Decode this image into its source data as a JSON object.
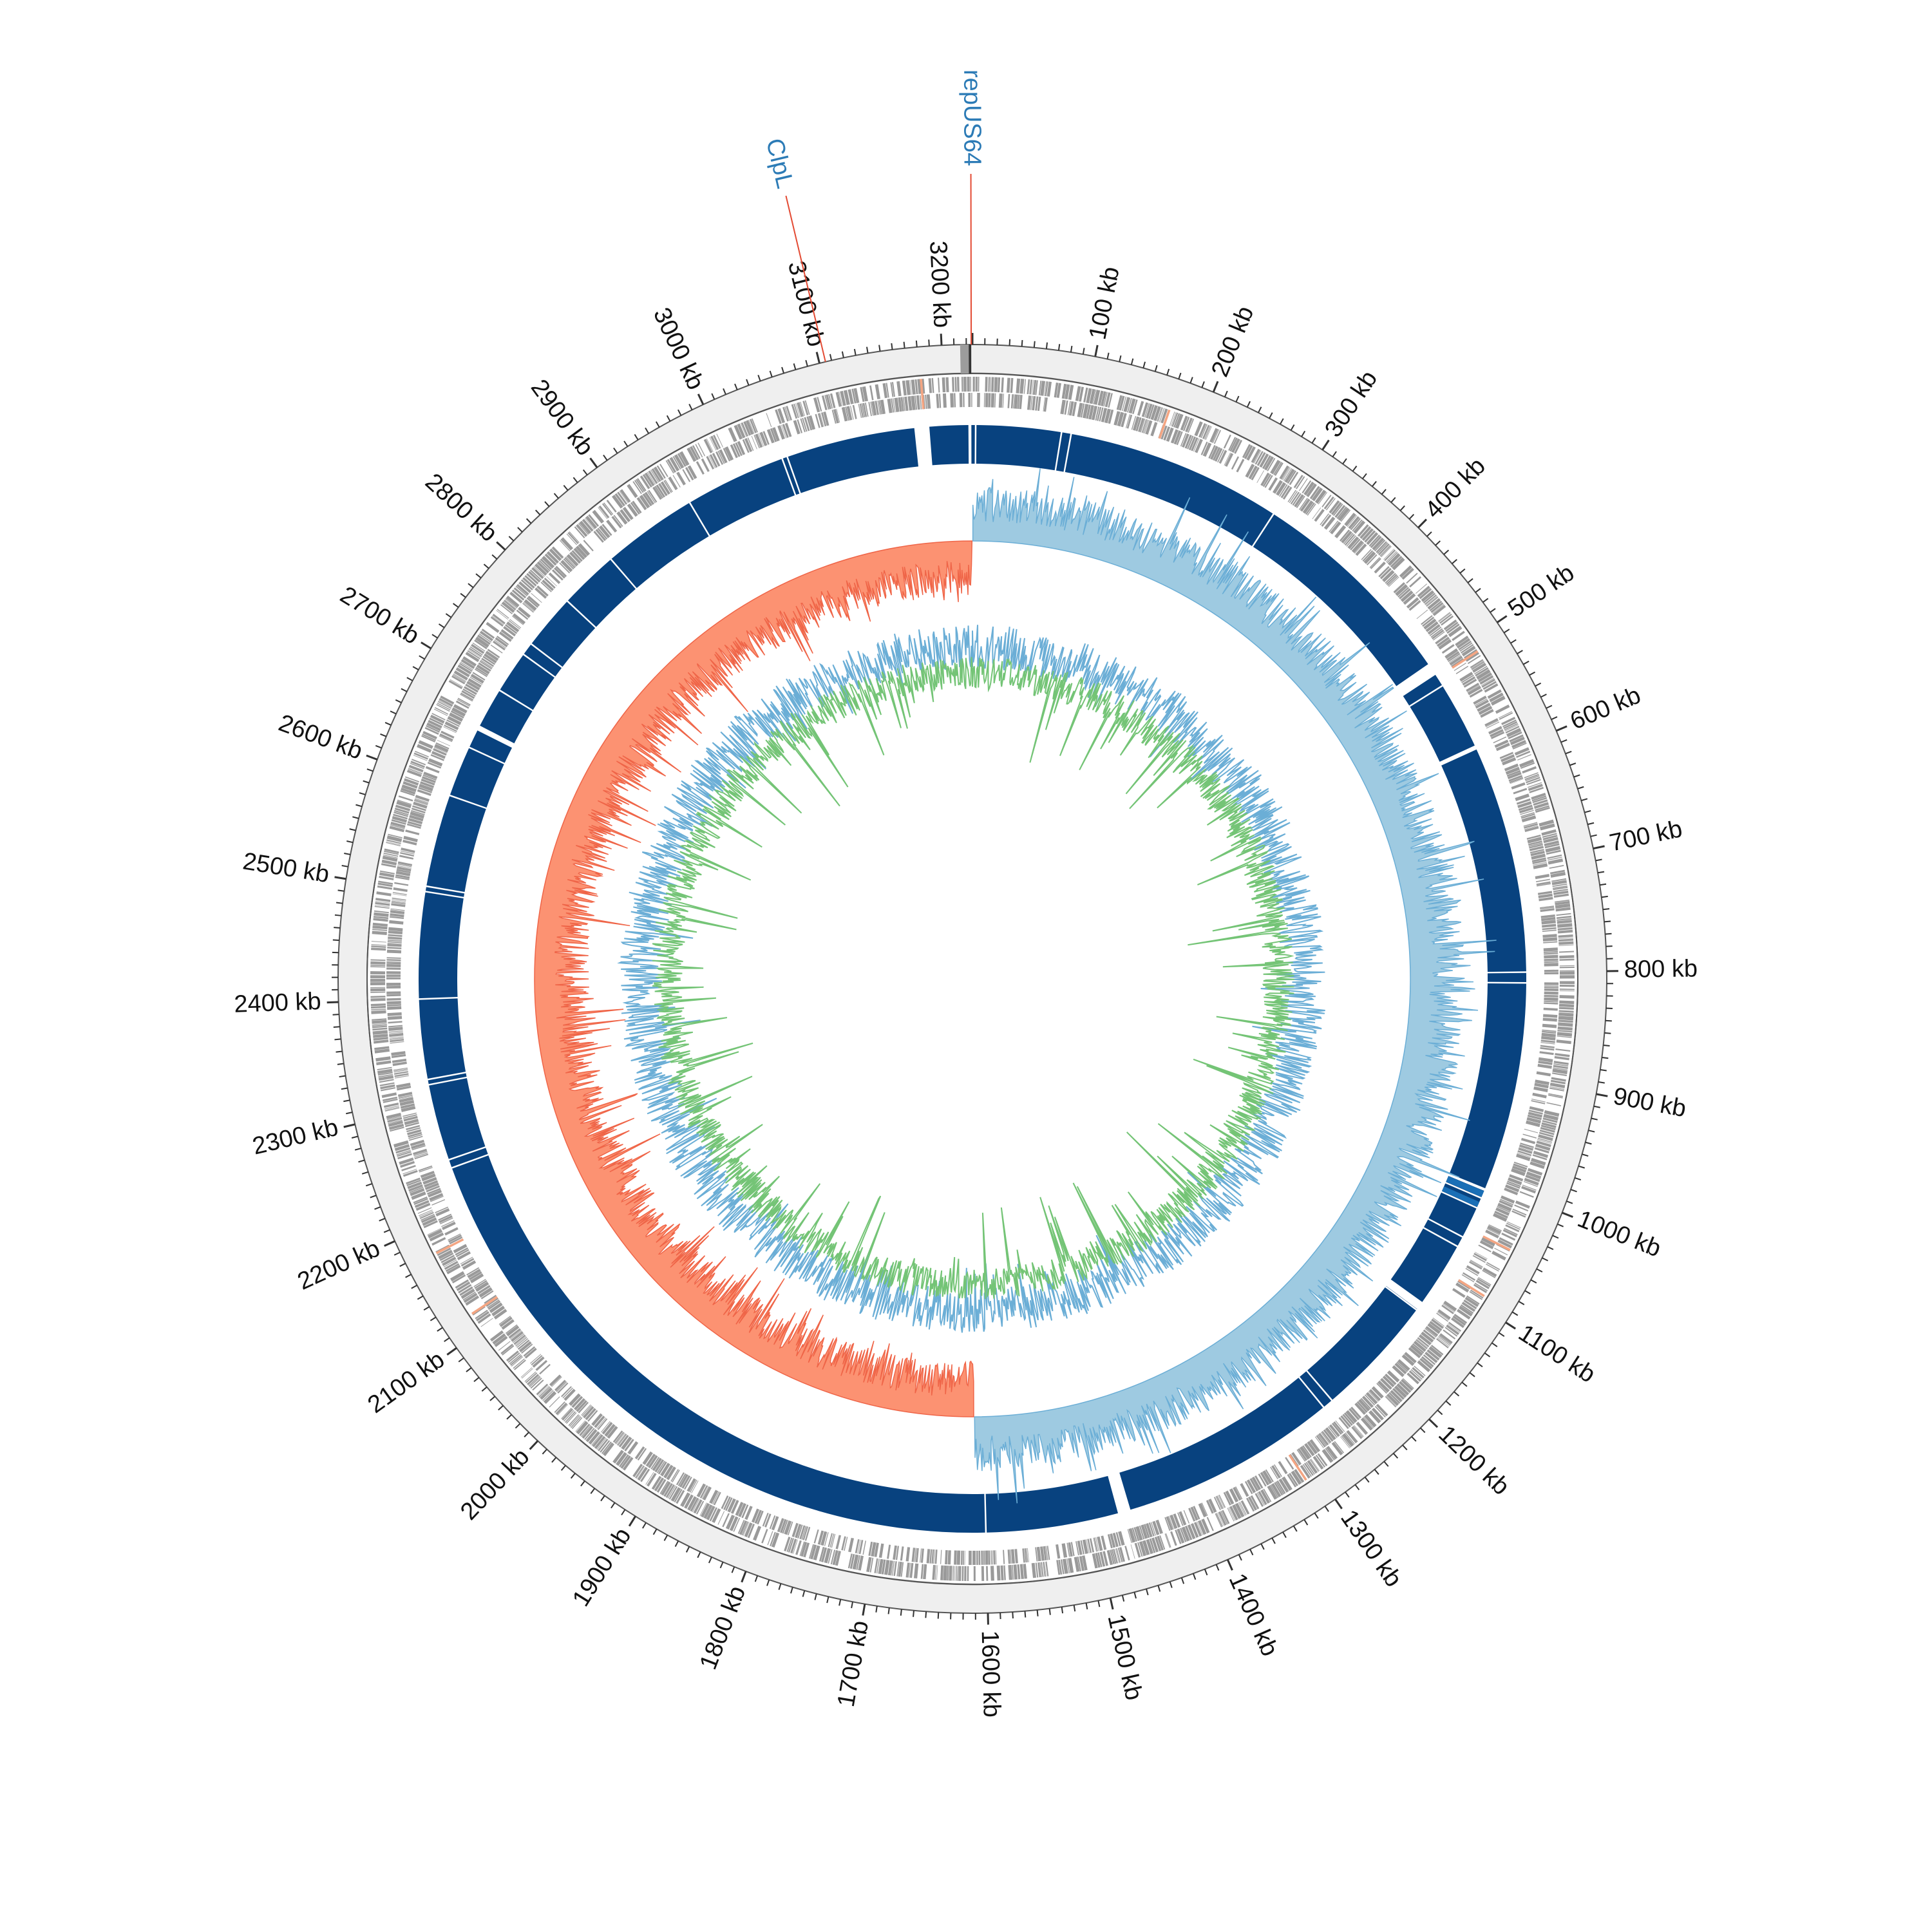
{
  "figure": {
    "type": "circular-genome-map",
    "total_length_kb": 3225,
    "tick_unit": "kb"
  },
  "colors": {
    "background": "#ffffff",
    "outer_ring": "#efefef",
    "ring_outline": "#555555",
    "cds": "#9a9a9a",
    "cds_highlight": "#f4a582",
    "contig": "#08427f",
    "contig_alt": "#1a6fb6",
    "gc_skew_positive": "#9ecae1",
    "gc_skew_positive_line": "#6baed6",
    "gc_skew_negative": "#fc9272",
    "gc_skew_negative_line": "#ef6548",
    "gc_content_outer": "#6baed6",
    "gc_content_inner": "#74c476",
    "marker_line": "#e34a33",
    "gene_label": "#2c7bb6"
  },
  "ticks": [
    {
      "position_kb": 100,
      "label": "100 kb"
    },
    {
      "position_kb": 200,
      "label": "200 kb"
    },
    {
      "position_kb": 300,
      "label": "300 kb"
    },
    {
      "position_kb": 400,
      "label": "400 kb"
    },
    {
      "position_kb": 500,
      "label": "500 kb"
    },
    {
      "position_kb": 600,
      "label": "600 kb"
    },
    {
      "position_kb": 700,
      "label": "700 kb"
    },
    {
      "position_kb": 800,
      "label": "800 kb"
    },
    {
      "position_kb": 900,
      "label": "900 kb"
    },
    {
      "position_kb": 1000,
      "label": "1000 kb"
    },
    {
      "position_kb": 1100,
      "label": "1100 kb"
    },
    {
      "position_kb": 1200,
      "label": "1200 kb"
    },
    {
      "position_kb": 1300,
      "label": "1300 kb"
    },
    {
      "position_kb": 1400,
      "label": "1400 kb"
    },
    {
      "position_kb": 1500,
      "label": "1500 kb"
    },
    {
      "position_kb": 1600,
      "label": "1600 kb"
    },
    {
      "position_kb": 1700,
      "label": "1700 kb"
    },
    {
      "position_kb": 1800,
      "label": "1800 kb"
    },
    {
      "position_kb": 1900,
      "label": "1900 kb"
    },
    {
      "position_kb": 2000,
      "label": "2000 kb"
    },
    {
      "position_kb": 2100,
      "label": "2100 kb"
    },
    {
      "position_kb": 2200,
      "label": "2200 kb"
    },
    {
      "position_kb": 2300,
      "label": "2300 kb"
    },
    {
      "position_kb": 2400,
      "label": "2400 kb"
    },
    {
      "position_kb": 2500,
      "label": "2500 kb"
    },
    {
      "position_kb": 2600,
      "label": "2600 kb"
    },
    {
      "position_kb": 2700,
      "label": "2700 kb"
    },
    {
      "position_kb": 2800,
      "label": "2800 kb"
    },
    {
      "position_kb": 2900,
      "label": "2900 kb"
    },
    {
      "position_kb": 3000,
      "label": "3000 kb"
    },
    {
      "position_kb": 3100,
      "label": "3100 kb"
    },
    {
      "position_kb": 3200,
      "label": "3200 kb"
    }
  ],
  "gene_labels": [
    {
      "name": "repUS64",
      "position_kb": 3224
    },
    {
      "name": "ClpL",
      "position_kb": 3105
    }
  ],
  "contig_gaps_kb": [
    3178,
    3222,
    3,
    83,
    92,
    295,
    502,
    520,
    585,
    800,
    810,
    1006,
    1007,
    1015,
    1025,
    1055,
    1065,
    1130,
    1135,
    1250,
    1260,
    1470,
    1600,
    2240,
    2248,
    2320,
    2325,
    2400,
    2500,
    2505,
    2592,
    2640,
    2660,
    2700,
    2740,
    2752,
    2804,
    2860,
    2950,
    3045,
    3050
  ],
  "contig_alt_ranges_kb": [
    [
      1008,
      1014
    ],
    [
      1019,
      1024
    ]
  ],
  "gc_skew_switch_kb": [
    0,
    1610
  ],
  "cds_highlight_positions_kb": [
    170,
    510,
    1045,
    1090,
    1310,
    2115,
    2175,
    3180
  ]
}
